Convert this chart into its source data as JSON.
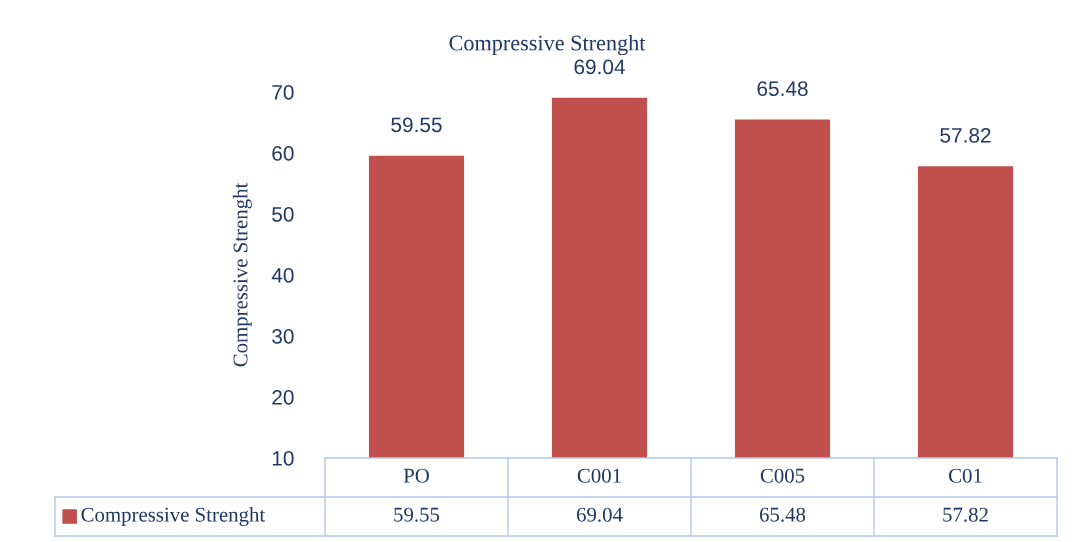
{
  "chart_data": {
    "type": "bar",
    "title": "Compressive Strenght",
    "ylabel": "Compressive Strenght",
    "categories": [
      "PO",
      "C001",
      "C005",
      "C01"
    ],
    "series": [
      {
        "name": "Compressive Strenght",
        "color": "#c0504d",
        "values": [
          59.55,
          69.04,
          65.48,
          57.82
        ],
        "value_labels": [
          "59.55",
          "69.04",
          "65.48",
          "57.82"
        ]
      }
    ],
    "ylim": [
      10,
      70
    ],
    "yticks": [
      10,
      20,
      30,
      40,
      50,
      60,
      70
    ],
    "grid": false,
    "legend": "bottom",
    "annotations": [
      "59.55",
      "69.04",
      "65.48",
      "57.82"
    ]
  }
}
